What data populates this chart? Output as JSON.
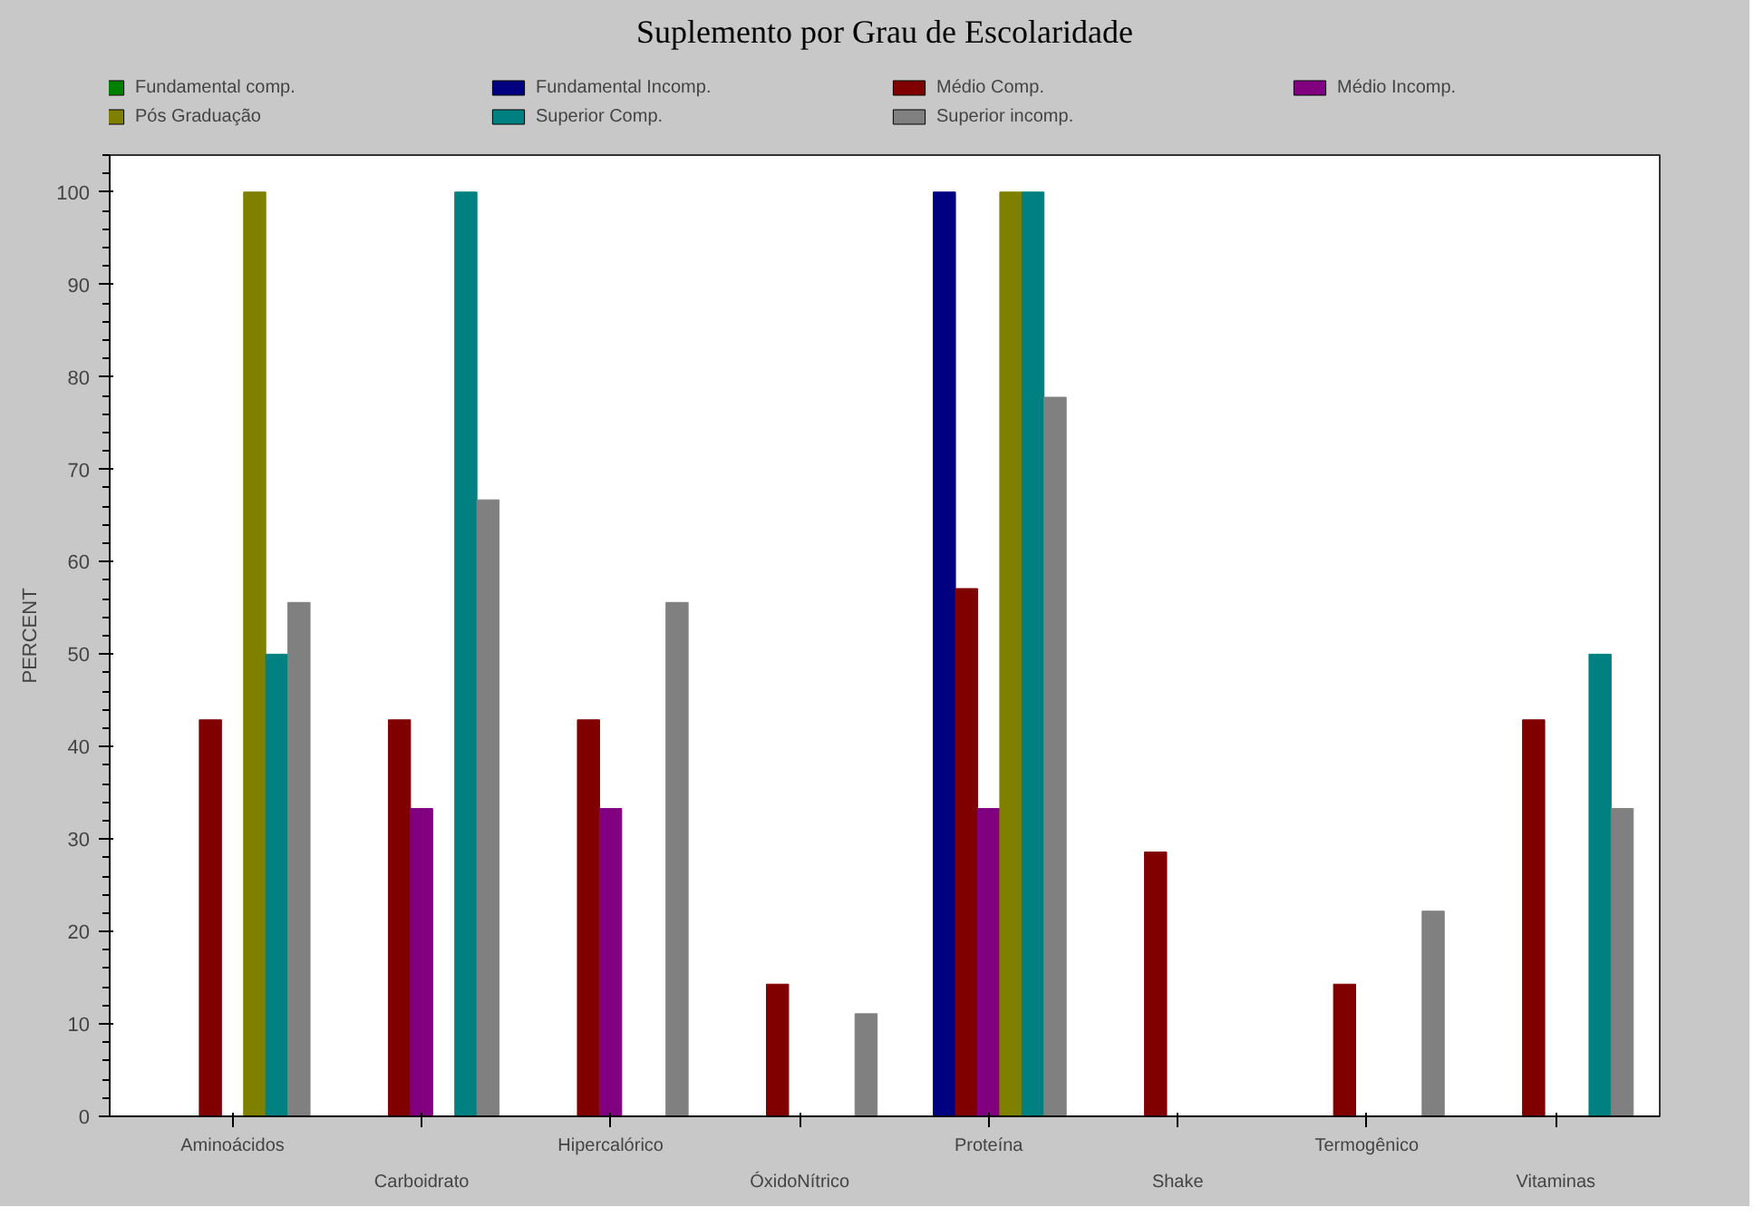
{
  "chart_data": {
    "type": "bar",
    "title": "Suplemento por Grau de Escolaridade",
    "ylabel": "PERCENT",
    "categories": [
      "Aminoácidos",
      "Carboidrato",
      "Hipercalórico",
      "ÓxidoNítrico",
      "Proteína",
      "Shake",
      "Termogênico",
      "Vitaminas"
    ],
    "series": [
      {
        "name": "Fundamental comp.",
        "color": "#008000",
        "values": [
          0,
          0,
          0,
          0,
          0,
          0,
          0,
          0
        ]
      },
      {
        "name": "Fundamental Incomp.",
        "color": "#000080",
        "values": [
          0,
          0,
          0,
          0,
          100,
          0,
          0,
          0
        ]
      },
      {
        "name": "Médio Comp.",
        "color": "#800000",
        "values": [
          42.9,
          42.9,
          42.9,
          14.3,
          57.1,
          28.6,
          14.3,
          42.9
        ]
      },
      {
        "name": "Médio Incomp.",
        "color": "#800080",
        "values": [
          0,
          33.3,
          33.3,
          0,
          33.3,
          0,
          0,
          0
        ]
      },
      {
        "name": "Pós Graduação",
        "color": "#808000",
        "values": [
          100,
          0,
          0,
          0,
          100,
          0,
          0,
          0
        ]
      },
      {
        "name": "Superior Comp.",
        "color": "#008080",
        "values": [
          50,
          100,
          0,
          0,
          100,
          0,
          0,
          50
        ]
      },
      {
        "name": "Superior incomp.",
        "color": "#808080",
        "values": [
          55.6,
          66.7,
          55.6,
          11.1,
          77.8,
          0,
          22.2,
          33.3
        ]
      }
    ],
    "ylim": [
      0,
      104
    ],
    "yticks": [
      0,
      10,
      20,
      30,
      40,
      50,
      60,
      70,
      80,
      90,
      100
    ],
    "grid": false,
    "legend": "top"
  }
}
